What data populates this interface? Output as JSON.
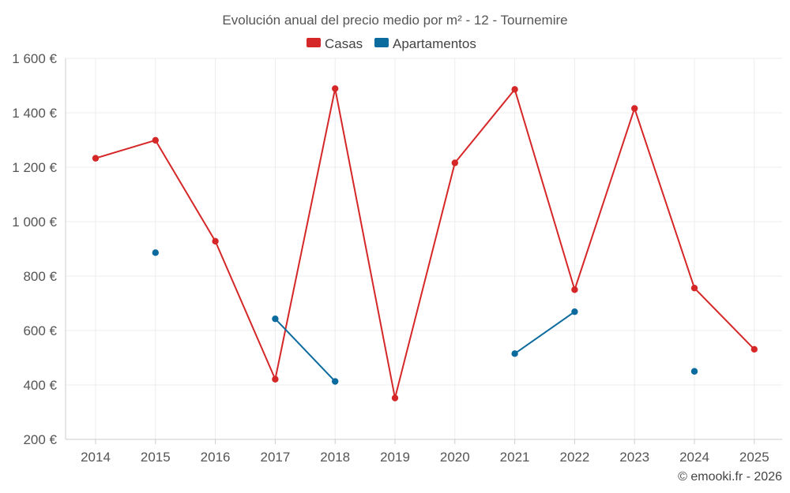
{
  "chart_data": {
    "type": "line",
    "title": "Evolución anual del precio medio por m² - 12 - Tournemire",
    "categories": [
      "2014",
      "2015",
      "2016",
      "2017",
      "2018",
      "2019",
      "2020",
      "2021",
      "2022",
      "2023",
      "2024",
      "2025"
    ],
    "ylim": [
      200,
      1600
    ],
    "yticks": [
      200,
      400,
      600,
      800,
      1000,
      1200,
      1400,
      1600
    ],
    "ytick_labels": [
      "200 €",
      "400 €",
      "600 €",
      "800 €",
      "1 000 €",
      "1 200 €",
      "1 400 €",
      "1 600 €"
    ],
    "grid": true,
    "legend_position": "top-center",
    "series": [
      {
        "name": "Casas",
        "color": "#d62728",
        "values": [
          1233,
          1299,
          928,
          421,
          1489,
          352,
          1216,
          1486,
          750,
          1416,
          756,
          531
        ]
      },
      {
        "name": "Apartamentos",
        "color": "#0b6a9e",
        "values": [
          null,
          886,
          null,
          643,
          413,
          null,
          null,
          515,
          669,
          null,
          450,
          null
        ]
      }
    ]
  },
  "credit": "© emooki.fr - 2026"
}
